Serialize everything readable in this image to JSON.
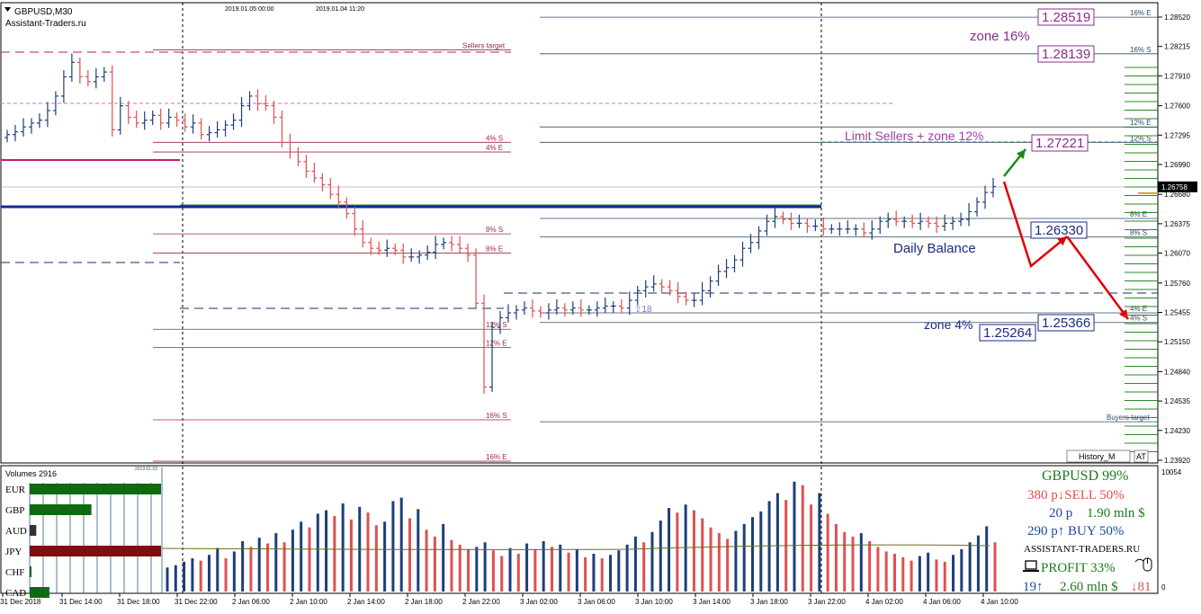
{
  "header": {
    "symbol": "GBPUSD,M30",
    "site": "Assistant-Traders.ru",
    "date_a": "2019.01.05 00:00",
    "date_b": "2019.01.04 11:20",
    "history_button": "History_M",
    "at_button": "AT"
  },
  "colors": {
    "bull": "#1c3f7a",
    "bear": "#e05050",
    "resistance": "#9b2a4a",
    "support": "#2f4a63",
    "pivot": "#102a90",
    "annotation_purple": "#8b2d8b",
    "arrow_red": "#e00000",
    "arrow_green": "#1a8a1a",
    "grid": "#000000"
  },
  "chart_data": [
    {
      "type": "candlestick",
      "title": "GBPUSD,M30",
      "ylim": [
        1.2392,
        1.2857
      ],
      "y_ticks": [
        "1.28520",
        "1.28215",
        "1.27910",
        "1.27600",
        "1.27295",
        "1.26990",
        "1.26680",
        "1.26375",
        "1.26070",
        "1.25760",
        "1.25455",
        "1.25150",
        "1.24840",
        "1.24535",
        "1.24230",
        "1.23920"
      ],
      "current_price_label": "1.26758",
      "x_tick_labels": [
        "31 Dec 2018",
        "31 Dec 14:00",
        "31 Dec 18:00",
        "31 Dec 22:00",
        "2 Jan 06:00",
        "2 Jan 10:00",
        "2 Jan 14:00",
        "2 Jan 18:00",
        "2 Jan 22:00",
        "3 Jan 02:00",
        "3 Jan 06:00",
        "3 Jan 10:00",
        "3 Jan 14:00",
        "3 Jan 18:00",
        "3 Jan 22:00",
        "4 Jan 02:00",
        "4 Jan 06:00",
        "4 Jan 10:00"
      ],
      "ohlc_close": [
        1.273,
        1.2733,
        1.2738,
        1.2742,
        1.2745,
        1.2755,
        1.277,
        1.279,
        1.2805,
        1.279,
        1.2785,
        1.279,
        1.2795,
        1.2735,
        1.276,
        1.2748,
        1.2742,
        1.2745,
        1.275,
        1.2742,
        1.2748,
        1.2745,
        1.2738,
        1.2742,
        1.273,
        1.2732,
        1.2735,
        1.274,
        1.2745,
        1.276,
        1.277,
        1.2762,
        1.276,
        1.2748,
        1.2722,
        1.2712,
        1.2702,
        1.2692,
        1.2685,
        1.2678,
        1.2668,
        1.266,
        1.2648,
        1.2632,
        1.2618,
        1.2612,
        1.261,
        1.2612,
        1.261,
        1.2603,
        1.2603,
        1.2605,
        1.2608,
        1.2616,
        1.2618,
        1.2616,
        1.2612,
        1.2605,
        1.2555,
        1.2468,
        1.253,
        1.254,
        1.2545,
        1.2548,
        1.255,
        1.2547,
        1.2545,
        1.2548,
        1.255,
        1.2548,
        1.255,
        1.2548,
        1.2548,
        1.255,
        1.2552,
        1.2552,
        1.255,
        1.2558,
        1.2568,
        1.2572,
        1.2575,
        1.2572,
        1.2568,
        1.2562,
        1.2558,
        1.2558,
        1.2568,
        1.2578,
        1.2588,
        1.2592,
        1.26,
        1.2612,
        1.2618,
        1.263,
        1.264,
        1.2645,
        1.2642,
        1.2638,
        1.2638,
        1.2635,
        1.2635,
        1.2632,
        1.2632,
        1.2632,
        1.2632,
        1.2632,
        1.2628,
        1.2632,
        1.264,
        1.2642,
        1.264,
        1.264,
        1.2638,
        1.264,
        1.2638,
        1.2635,
        1.2638,
        1.264,
        1.2642,
        1.265,
        1.266,
        1.267,
        1.2676
      ],
      "levels": [
        {
          "label": "16% E",
          "price": 1.28519,
          "side": "right",
          "color": "support",
          "boxed": "1.28519"
        },
        {
          "label": "16% S",
          "price": 1.28139,
          "side": "right",
          "color": "support",
          "boxed": "1.28139"
        },
        {
          "label": "Sellers target",
          "price": 1.2818,
          "side": "left",
          "color": "resistance"
        },
        {
          "label": "12% E",
          "price": 1.2738,
          "side": "right",
          "color": "support"
        },
        {
          "label": "12% S",
          "price": 1.2722,
          "side": "right",
          "color": "support"
        },
        {
          "label": "4% S",
          "price": 1.2722,
          "side": "left",
          "color": "resistance"
        },
        {
          "label": "4% E",
          "price": 1.2712,
          "side": "left",
          "color": "resistance"
        },
        {
          "label": "8% E",
          "price": 1.2643,
          "side": "right",
          "color": "support"
        },
        {
          "label": "8% S",
          "price": 1.2624,
          "side": "right",
          "color": "support"
        },
        {
          "label": "8% S",
          "price": 1.2627,
          "side": "left",
          "color": "resistance"
        },
        {
          "label": "8% E",
          "price": 1.2607,
          "side": "left",
          "color": "resistance"
        },
        {
          "label": "4% E",
          "price": 1.2545,
          "side": "right",
          "color": "support"
        },
        {
          "label": "4% S",
          "price": 1.2535,
          "side": "right",
          "color": "support"
        },
        {
          "label": "12% S",
          "price": 1.2528,
          "side": "left",
          "color": "resistance"
        },
        {
          "label": "12% E",
          "price": 1.2509,
          "side": "left",
          "color": "resistance"
        },
        {
          "label": "16% S",
          "price": 1.2434,
          "side": "left",
          "color": "resistance"
        },
        {
          "label": "16% E",
          "price": 1.2391,
          "side": "left",
          "color": "resistance"
        },
        {
          "label": "Buyers target",
          "price": 1.2432,
          "side": "right",
          "color": "support"
        }
      ],
      "annotations": {
        "zone16": "zone 16%",
        "limit_sellers": "Limit Sellers + zone 12%",
        "limit_price": "1.27221",
        "daily_balance": "Daily Balance",
        "daily_balance_price": "1.26330",
        "zone4": "zone 4%",
        "zone4_upper": "1.25366",
        "zone4_lower": "1.25264",
        "marker_18": "⇧18"
      }
    },
    {
      "type": "bar",
      "title": "Volumes 2916",
      "mini_date": "2019.01.03",
      "y_max_label": "10054",
      "y_min_label": "0",
      "currency_strength": [
        {
          "name": "EUR",
          "value": 1.0,
          "color": "#0f6a0f"
        },
        {
          "name": "GBP",
          "value": 0.47,
          "color": "#0f6a0f"
        },
        {
          "name": "AUD",
          "value": 0.05,
          "color": "#333333"
        },
        {
          "name": "JPY",
          "value": 1.0,
          "color": "#7a1010"
        },
        {
          "name": "CHF",
          "value": 0.01,
          "color": "#0f6a0f"
        },
        {
          "name": "CAD",
          "value": 0.15,
          "color": "#0f6a0f"
        }
      ],
      "volumes": [
        2100,
        2300,
        2600,
        2900,
        2700,
        3200,
        3800,
        2900,
        3500,
        4400,
        3900,
        4700,
        4200,
        5100,
        4300,
        5400,
        6100,
        5600,
        6800,
        7100,
        6600,
        7700,
        6300,
        7400,
        6900,
        5800,
        6100,
        7900,
        8200,
        6400,
        7200,
        5400,
        4800,
        5900,
        4500,
        4100,
        3700,
        3900,
        4300,
        3600,
        3100,
        3800,
        3300,
        4200,
        3700,
        4400,
        3900,
        4100,
        3400,
        3700,
        3000,
        3300,
        2900,
        3200,
        3600,
        4100,
        4800,
        4300,
        5200,
        6200,
        7300,
        6900,
        7600,
        7100,
        6400,
        5600,
        5100,
        4600,
        5300,
        5900,
        6500,
        7000,
        7900,
        8600,
        8000,
        9600,
        9300,
        7600,
        8600,
        6800,
        5900,
        5200,
        4800,
        5100,
        4400,
        3900,
        3500,
        3300,
        3000,
        2700,
        3100,
        3400,
        2800,
        2600,
        3200,
        3700,
        4300,
        4900,
        5700,
        4300
      ],
      "info_panel": {
        "line1": "GBPUSD 99%",
        "line2": "380 p↓SELL 50%",
        "line3a": "20 p",
        "line3b": "1.90 mln $",
        "line4": "290 p↑ BUY 50%",
        "line5": "ASSISTANT-TRADERS.RU",
        "line6": "PROFIT 33%",
        "line7a": "19↑",
        "line7b": "2.60 mln $",
        "line7c": "↓81"
      }
    }
  ]
}
